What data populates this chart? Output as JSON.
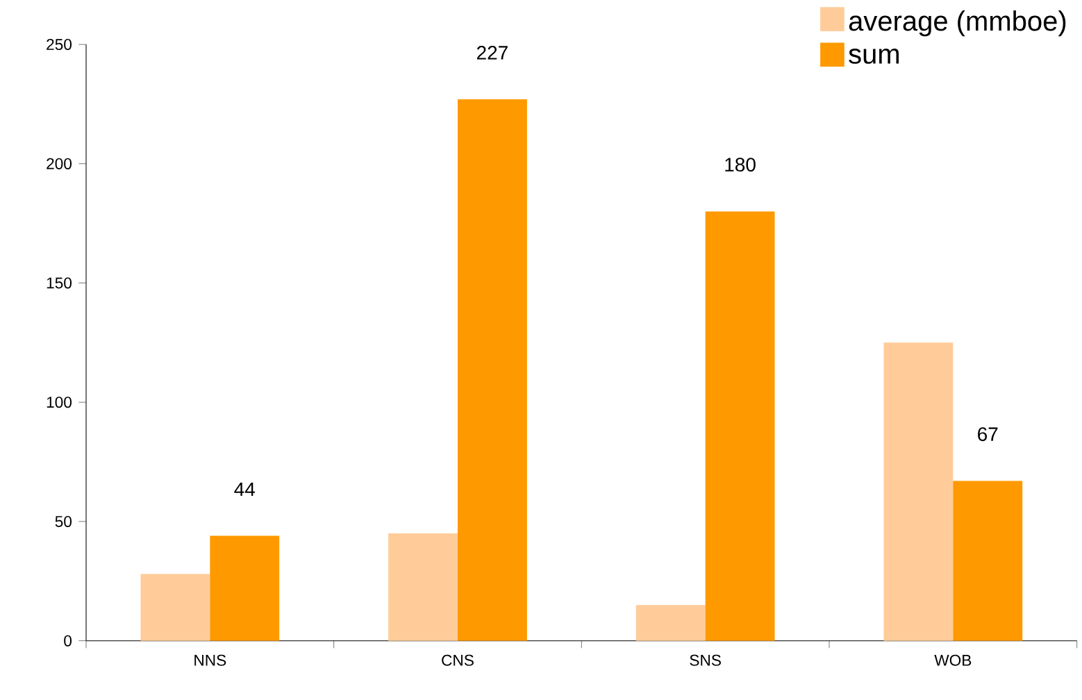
{
  "chart_data": {
    "type": "bar",
    "categories": [
      "NNS",
      "CNS",
      "SNS",
      "WOB"
    ],
    "series": [
      {
        "name": "average (mmboe)",
        "color": "#ffcc99",
        "values": [
          28,
          45,
          15,
          125
        ]
      },
      {
        "name": "sum",
        "color": "#ff9900",
        "values": [
          44,
          227,
          180,
          67
        ],
        "value_labels": [
          "44",
          "227",
          "180",
          "67"
        ]
      }
    ],
    "ylim": [
      0,
      250
    ],
    "yticks": [
      0,
      50,
      100,
      150,
      200,
      250
    ],
    "grid": false,
    "legend": "top right"
  }
}
